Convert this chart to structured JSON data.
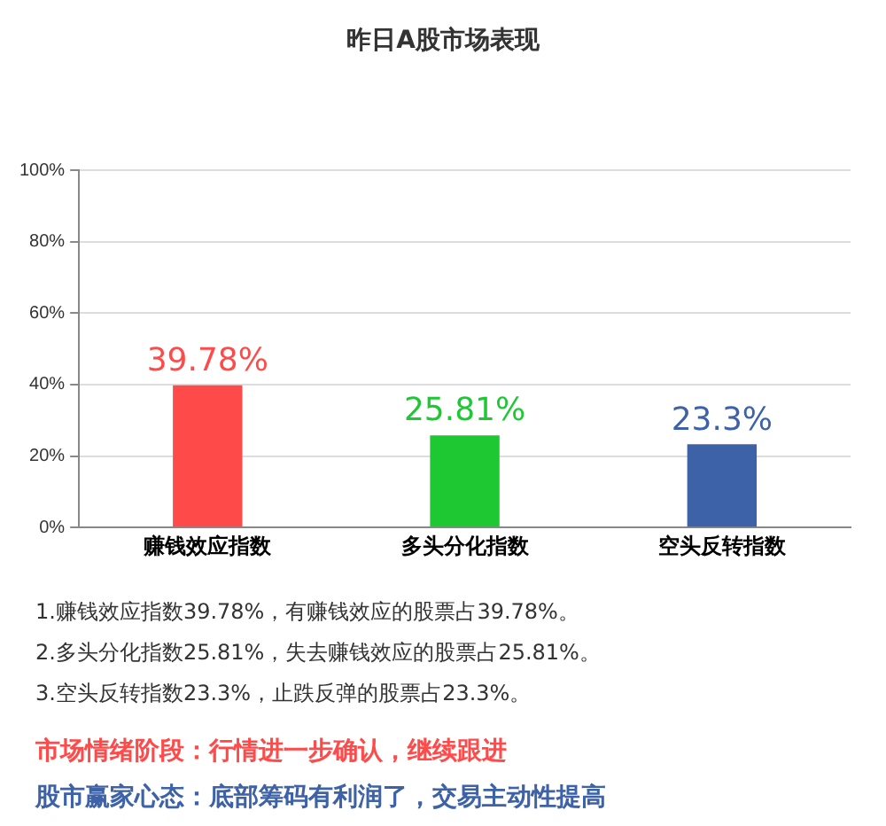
{
  "chart_data": {
    "type": "bar",
    "title": "昨日A股市场表现",
    "categories": [
      "赚钱效应指数",
      "多头分化指数",
      "空头反转指数"
    ],
    "values": [
      39.78,
      25.81,
      23.3
    ],
    "colors": [
      "#ff4a4a",
      "#1ec832",
      "#3d62a8"
    ],
    "value_labels": [
      "39.78%",
      "25.81%",
      "23.3%"
    ],
    "ylim": [
      0,
      100
    ],
    "yticks": [
      {
        "value": 0,
        "label": "0%"
      },
      {
        "value": 20,
        "label": "20%"
      },
      {
        "value": 40,
        "label": "40%"
      },
      {
        "value": 60,
        "label": "60%"
      },
      {
        "value": 80,
        "label": "80%"
      },
      {
        "value": 100,
        "label": "100%"
      }
    ],
    "grid": "y",
    "annotations": [
      "1.赚钱效应指数39.78%，有赚钱效应的股票占39.78%。",
      "2.多头分化指数25.81%，失去赚钱效应的股票占25.81%。",
      "3.空头反转指数23.3%，止跌反弹的股票占23.3%。",
      "市场情绪阶段：行情进一步确认，继续跟进",
      "股市赢家心态：底部筹码有利润了，交易主动性提高"
    ]
  }
}
